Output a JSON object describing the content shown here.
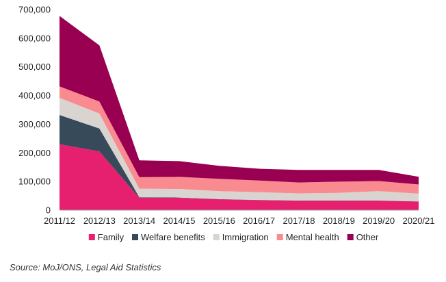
{
  "chart_data": {
    "type": "area",
    "stacked": true,
    "categories": [
      "2011/12",
      "2012/13",
      "2013/14",
      "2014/15",
      "2015/16",
      "2016/17",
      "2017/18",
      "2018/19",
      "2019/20",
      "2020/21"
    ],
    "y_ticks": [
      "0",
      "100,000",
      "200,000",
      "300,000",
      "400,000",
      "500,000",
      "600,000",
      "700,000"
    ],
    "ylim": [
      0,
      700000
    ],
    "grid": false,
    "legend_position": "bottom",
    "series": [
      {
        "name": "Family",
        "color": "#e6206e",
        "values": [
          230000,
          205000,
          43000,
          43000,
          38000,
          35000,
          33000,
          33000,
          33000,
          30000
        ]
      },
      {
        "name": "Welfare benefits",
        "color": "#374a5a",
        "values": [
          102000,
          80000,
          2000,
          1000,
          500,
          500,
          500,
          500,
          500,
          500
        ]
      },
      {
        "name": "Immigration",
        "color": "#d9d4cf",
        "values": [
          60000,
          52000,
          30000,
          30000,
          28000,
          27000,
          25000,
          27000,
          33000,
          27000
        ]
      },
      {
        "name": "Mental health",
        "color": "#f98a8f",
        "values": [
          40000,
          42000,
          40000,
          42000,
          43000,
          41000,
          38000,
          39000,
          35000,
          32000
        ]
      },
      {
        "name": "Other",
        "color": "#9a0051",
        "values": [
          246000,
          196000,
          59000,
          55000,
          45000,
          41000,
          44000,
          41000,
          39000,
          27000
        ]
      }
    ]
  },
  "source": "Source: MoJ/ONS, Legal Aid Statistics"
}
